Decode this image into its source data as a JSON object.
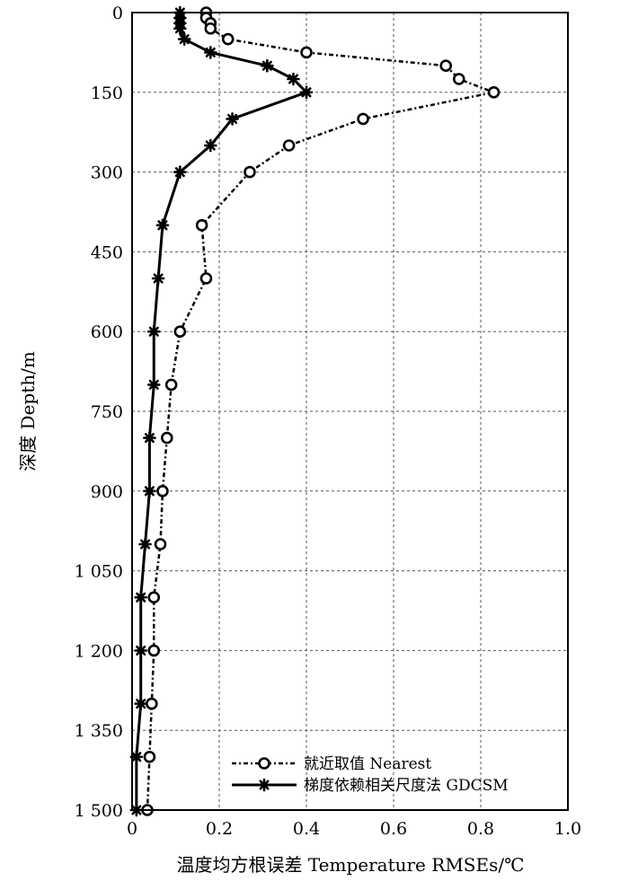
{
  "chart_data": {
    "type": "line",
    "xlabel": "温度均方根误差 Temperature RMSEs/℃",
    "ylabel": "深度 Depth/m",
    "xlim": [
      0,
      1.0
    ],
    "ylim": [
      0,
      1500
    ],
    "y_inverted": true,
    "grid": true,
    "legend_position": "bottom-right",
    "x_ticks": [
      0,
      0.2,
      0.4,
      0.6,
      0.8,
      1.0
    ],
    "x_tick_labels": [
      "0",
      "0.2",
      "0.4",
      "0.6",
      "0.8",
      "1.0"
    ],
    "y_ticks": [
      0,
      150,
      300,
      450,
      600,
      750,
      900,
      1050,
      1200,
      1350,
      1500
    ],
    "y_tick_labels": [
      "0",
      "150",
      "300",
      "450",
      "600",
      "750",
      "900",
      "1 050",
      "1 200",
      "1 350",
      "1 500"
    ],
    "series": [
      {
        "name": "就近取值 Nearest",
        "style": "dash-dot",
        "marker": "circle",
        "color": "#000000",
        "points": [
          [
            0.17,
            0
          ],
          [
            0.17,
            10
          ],
          [
            0.18,
            20
          ],
          [
            0.18,
            30
          ],
          [
            0.22,
            50
          ],
          [
            0.4,
            75
          ],
          [
            0.72,
            100
          ],
          [
            0.75,
            125
          ],
          [
            0.83,
            150
          ],
          [
            0.53,
            200
          ],
          [
            0.36,
            250
          ],
          [
            0.27,
            300
          ],
          [
            0.16,
            400
          ],
          [
            0.17,
            500
          ],
          [
            0.11,
            600
          ],
          [
            0.09,
            700
          ],
          [
            0.08,
            800
          ],
          [
            0.07,
            900
          ],
          [
            0.065,
            1000
          ],
          [
            0.05,
            1100
          ],
          [
            0.05,
            1200
          ],
          [
            0.045,
            1300
          ],
          [
            0.04,
            1400
          ],
          [
            0.035,
            1500
          ]
        ]
      },
      {
        "name": "梯度依赖相关尺度法 GDCSM",
        "style": "solid",
        "marker": "asterisk",
        "color": "#000000",
        "points": [
          [
            0.11,
            0
          ],
          [
            0.11,
            10
          ],
          [
            0.11,
            20
          ],
          [
            0.11,
            30
          ],
          [
            0.12,
            50
          ],
          [
            0.18,
            75
          ],
          [
            0.31,
            100
          ],
          [
            0.37,
            125
          ],
          [
            0.4,
            150
          ],
          [
            0.23,
            200
          ],
          [
            0.18,
            250
          ],
          [
            0.11,
            300
          ],
          [
            0.07,
            400
          ],
          [
            0.06,
            500
          ],
          [
            0.05,
            600
          ],
          [
            0.05,
            700
          ],
          [
            0.04,
            800
          ],
          [
            0.04,
            900
          ],
          [
            0.03,
            1000
          ],
          [
            0.02,
            1100
          ],
          [
            0.02,
            1200
          ],
          [
            0.02,
            1300
          ],
          [
            0.01,
            1400
          ],
          [
            0.01,
            1500
          ]
        ]
      }
    ]
  }
}
